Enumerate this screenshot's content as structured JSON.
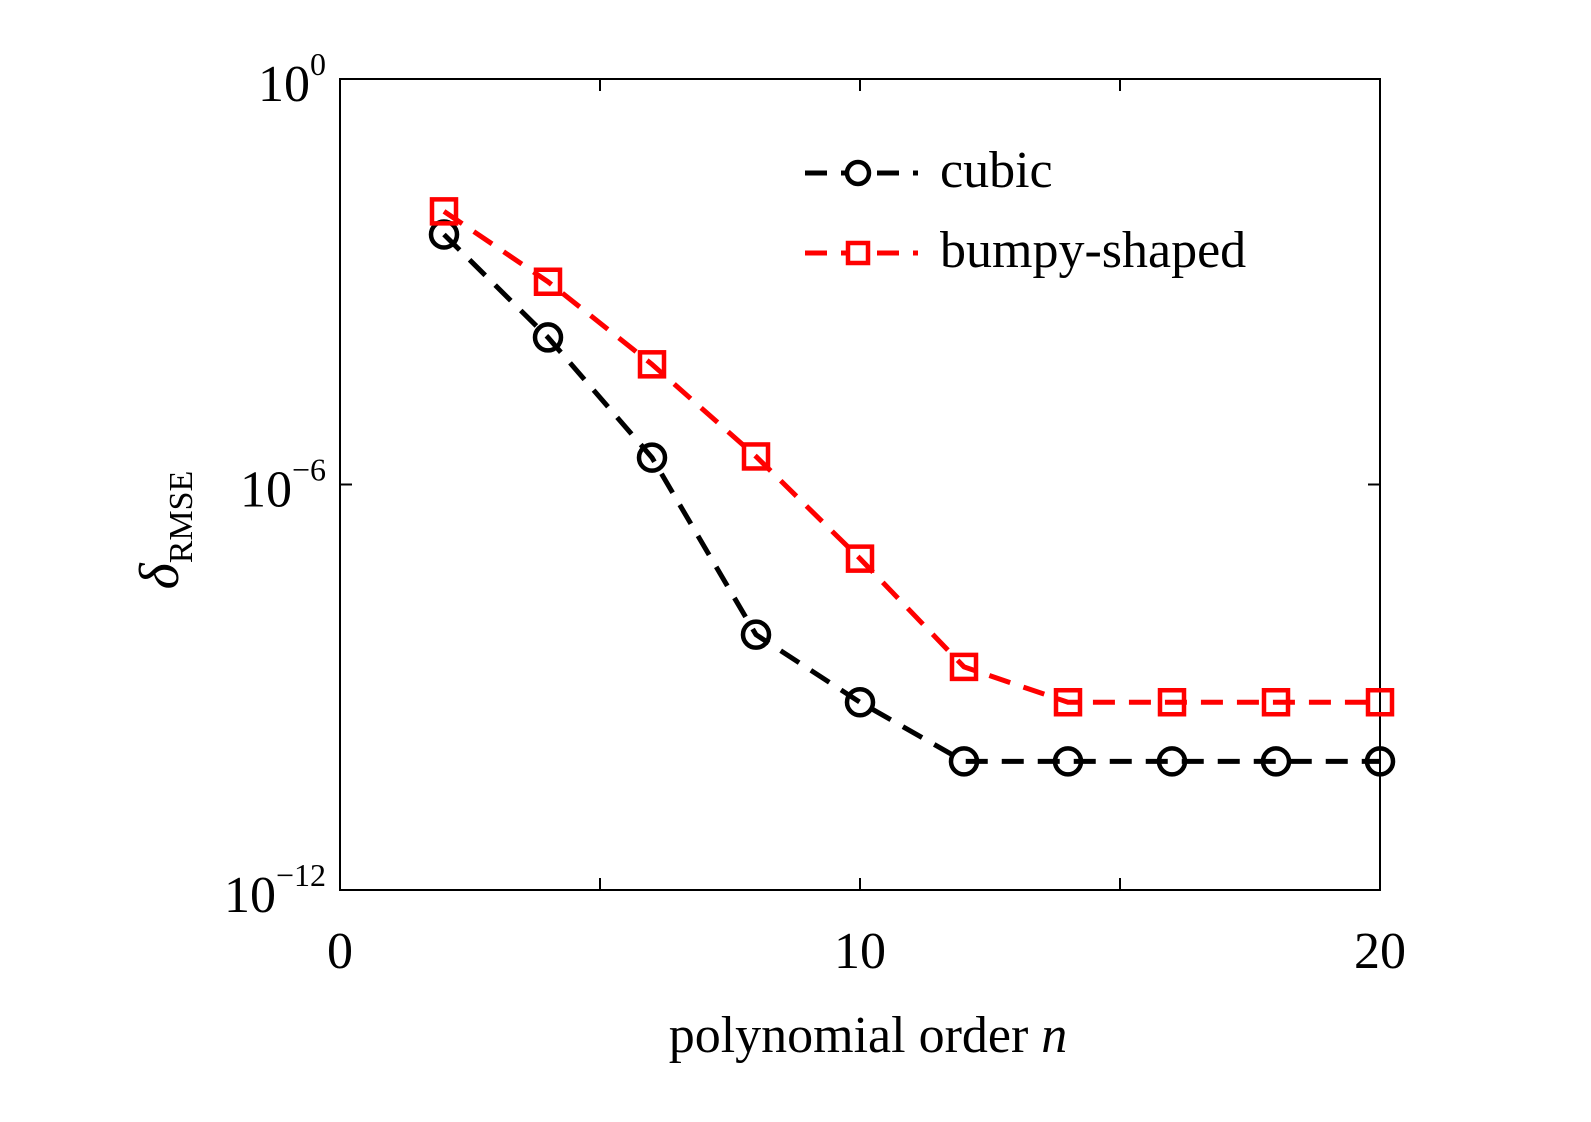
{
  "chart_data": {
    "type": "line",
    "xlabel": "polynomial order",
    "xlabel_var": "n",
    "ylabel_symbol": "δ",
    "ylabel_sub": "RMSE",
    "xlim": [
      0,
      20
    ],
    "ylim": [
      1e-12,
      1
    ],
    "yscale": "log",
    "x_ticks": [
      0,
      10,
      20
    ],
    "x_minor_ticks": [
      5,
      15
    ],
    "y_ticks": [
      {
        "value": 1,
        "base": "10",
        "exp": "0"
      },
      {
        "value": 1e-06,
        "base": "10",
        "exp": "−6"
      },
      {
        "value": 1e-12,
        "base": "10",
        "exp": "−12"
      }
    ],
    "legend_position": "top-right",
    "grid": false,
    "series": [
      {
        "name": "cubic",
        "color": "#000000",
        "marker": "circle",
        "linestyle": "dashed",
        "x": [
          2,
          4,
          6,
          8,
          10,
          12,
          14,
          16,
          18,
          20
        ],
        "y": [
          0.005,
          0.00015,
          2.5e-06,
          6e-09,
          6e-10,
          8e-11,
          8e-11,
          8e-11,
          8e-11,
          8e-11
        ]
      },
      {
        "name": "bumpy-shaped",
        "color": "#ff0000",
        "marker": "square",
        "linestyle": "dashed",
        "x": [
          2,
          4,
          6,
          8,
          10,
          12,
          14,
          16,
          18,
          20
        ],
        "y": [
          0.011,
          0.001,
          6e-05,
          2.6e-06,
          8e-08,
          2e-09,
          6e-10,
          6e-10,
          6e-10,
          6e-10
        ]
      }
    ]
  }
}
